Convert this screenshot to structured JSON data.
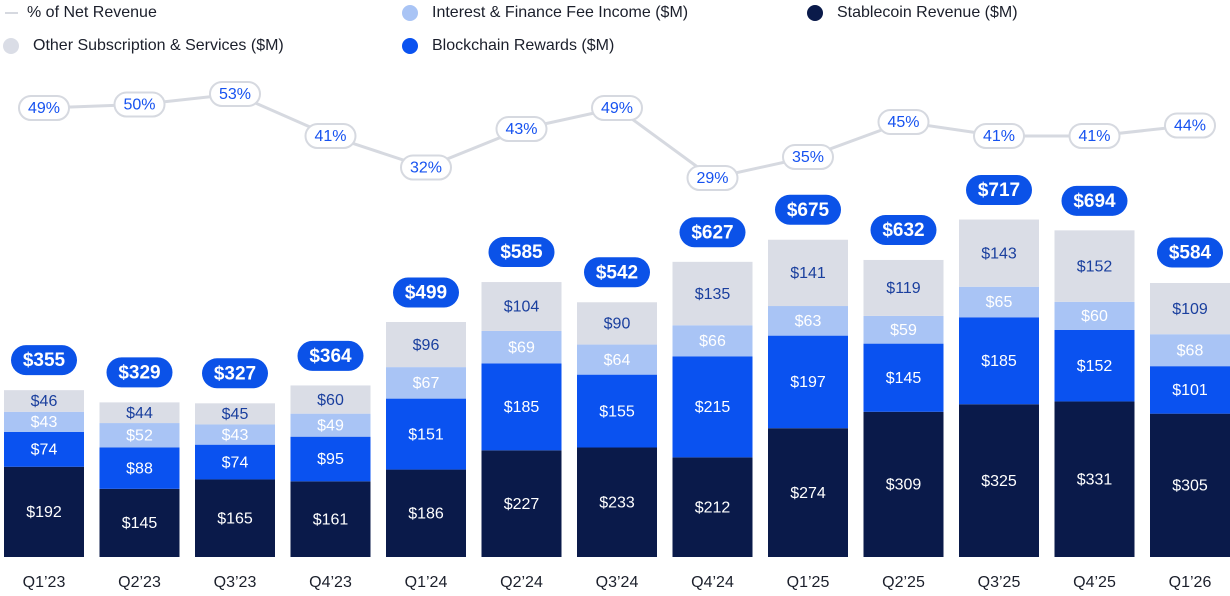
{
  "chart_data": {
    "type": "bar",
    "stacked": true,
    "categories": [
      "Q1’23",
      "Q2’23",
      "Q3’23",
      "Q4’23",
      "Q1’24",
      "Q2’24",
      "Q3’24",
      "Q4’24",
      "Q1’25",
      "Q2’25",
      "Q3’25",
      "Q4’25",
      "Q1’26"
    ],
    "ylim": [
      0,
      800
    ],
    "y2lim": [
      20,
      60
    ],
    "series": [
      {
        "name": "% of Net Revenue",
        "type": "line",
        "axis": "y2",
        "color": "#d6d9e0",
        "values": [
          49,
          50,
          53,
          41,
          32,
          43,
          49,
          29,
          35,
          45,
          41,
          41,
          44
        ],
        "value_labels": [
          "49%",
          "50%",
          "53%",
          "41%",
          "32%",
          "43%",
          "49%",
          "29%",
          "35%",
          "45%",
          "41%",
          "41%",
          "44%"
        ]
      },
      {
        "name": "Stablecoin Revenue ($M)",
        "type": "bar",
        "color": "#0a1a4a",
        "values": [
          192,
          145,
          165,
          161,
          186,
          227,
          233,
          212,
          274,
          309,
          325,
          331,
          305
        ],
        "value_labels": [
          "$192",
          "$145",
          "$165",
          "$161",
          "$186",
          "$227",
          "$233",
          "$212",
          "$274",
          "$309",
          "$325",
          "$331",
          "$305"
        ]
      },
      {
        "name": "Blockchain Rewards ($M)",
        "type": "bar",
        "color": "#0a52f0",
        "values": [
          74,
          88,
          74,
          95,
          151,
          185,
          155,
          215,
          197,
          145,
          185,
          152,
          101
        ],
        "value_labels": [
          "$74",
          "$88",
          "$74",
          "$95",
          "$151",
          "$185",
          "$155",
          "$215",
          "$197",
          "$145",
          "$185",
          "$152",
          "$101"
        ]
      },
      {
        "name": "Interest & Finance Fee Income ($M)",
        "type": "bar",
        "color": "#a9c4f5",
        "values": [
          43,
          52,
          43,
          49,
          67,
          69,
          64,
          66,
          63,
          59,
          65,
          60,
          68
        ],
        "value_labels": [
          "$43",
          "$52",
          "$43",
          "$49",
          "$67",
          "$69",
          "$64",
          "$66",
          "$63",
          "$59",
          "$65",
          "$60",
          "$68"
        ]
      },
      {
        "name": "Other Subscription & Services ($M)",
        "type": "bar",
        "color": "#dadde6",
        "values": [
          46,
          44,
          45,
          60,
          96,
          104,
          90,
          135,
          141,
          119,
          143,
          152,
          109
        ],
        "value_labels": [
          "$46",
          "$44",
          "$45",
          "$60",
          "$96",
          "$104",
          "$90",
          "$135",
          "$141",
          "$119",
          "$143",
          "$152",
          "$109"
        ]
      }
    ],
    "totals": {
      "values": [
        355,
        329,
        327,
        364,
        499,
        585,
        542,
        627,
        675,
        632,
        717,
        694,
        584
      ],
      "value_labels": [
        "$355",
        "$329",
        "$327",
        "$364",
        "$499",
        "$585",
        "$542",
        "$627",
        "$675",
        "$632",
        "$717",
        "$694",
        "$584"
      ]
    }
  }
}
